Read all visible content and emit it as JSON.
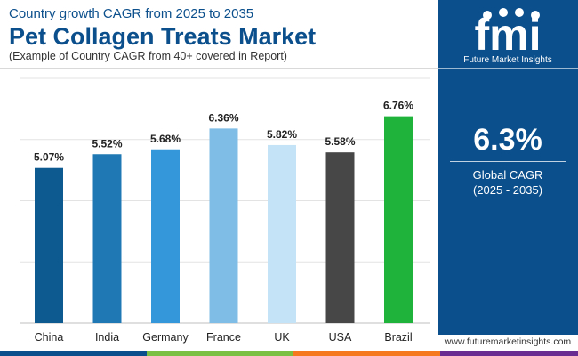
{
  "header": {
    "subtitle": "Country growth CAGR from 2025 to 2035",
    "title": "Pet Collagen Treats Market",
    "note": "(Example of Country CAGR from 40+ covered in Report)"
  },
  "sidebar": {
    "logo_word": "fmi",
    "logo_text": "Future Market Insights",
    "cagr_value": "6.3%",
    "cagr_label": "Global CAGR",
    "cagr_period": "(2025 - 2035)",
    "background": "#0b4f8c"
  },
  "footer": {
    "url": "www.futuremarketinsights.com",
    "bar_colors": [
      "#0b4f8c",
      "#7bc043",
      "#f4791f",
      "#6a2c91"
    ]
  },
  "chart_data": {
    "type": "bar",
    "title": "Pet Collagen Treats Market",
    "categories": [
      "China",
      "India",
      "Germany",
      "France",
      "UK",
      "USA",
      "Brazil"
    ],
    "values": [
      5.07,
      5.52,
      5.68,
      6.36,
      5.82,
      5.58,
      6.76
    ],
    "data_labels": [
      "5.07%",
      "5.52%",
      "5.68%",
      "6.36%",
      "5.82%",
      "5.58%",
      "6.76%"
    ],
    "colors": [
      "#0d5a91",
      "#1f78b4",
      "#3497d9",
      "#7fbde6",
      "#c5e3f6",
      "#474747",
      "#20b33c"
    ],
    "xlabel": "",
    "ylabel": "",
    "ylim": [
      0,
      8
    ],
    "grid": true
  }
}
